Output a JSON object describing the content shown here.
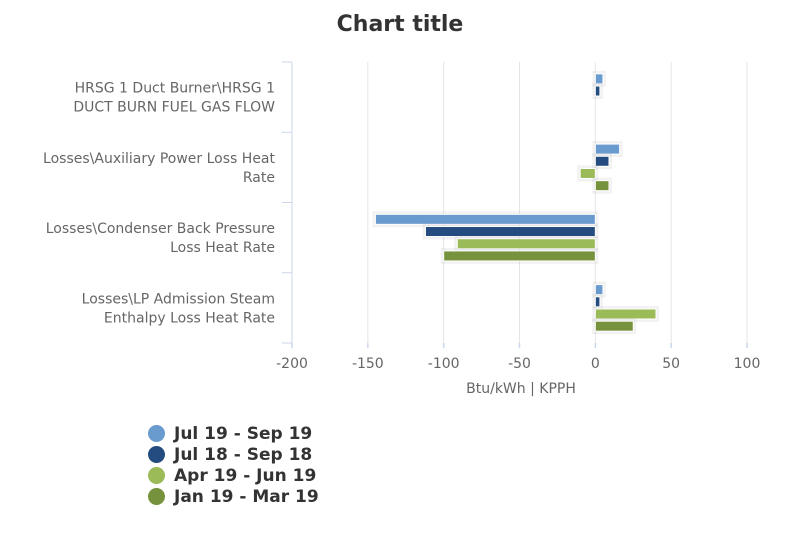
{
  "chart_data": {
    "type": "bar",
    "orientation": "horizontal",
    "title": "Chart title",
    "xlabel": "Btu/kWh | KPPH",
    "ylabel": "",
    "xlim": [
      -200,
      100
    ],
    "xticks": [
      -200,
      -150,
      -100,
      -50,
      0,
      50,
      100
    ],
    "grid": true,
    "legend_position": "bottom-left",
    "categories": [
      [
        "HRSG 1 Duct Burner\\HRSG 1",
        "DUCT BURN FUEL GAS FLOW"
      ],
      [
        "Losses\\Auxiliary Power Loss Heat",
        "Rate"
      ],
      [
        "Losses\\Condenser Back Pressure",
        "Loss Heat Rate"
      ],
      [
        "Losses\\LP Admission Steam",
        "Enthalpy Loss Heat Rate"
      ]
    ],
    "series": [
      {
        "name": "Jul 19 - Sep 19",
        "color": "#6a9bcf",
        "values": [
          5,
          16,
          -145,
          5
        ]
      },
      {
        "name": "Jul 18 - Sep 18",
        "color": "#244c80",
        "values": [
          3,
          9,
          -112,
          3
        ]
      },
      {
        "name": "Apr 19 - Jun 19",
        "color": "#9bbb59",
        "values": [
          null,
          -10,
          -91,
          40
        ]
      },
      {
        "name": "Jan 19 - Mar 19",
        "color": "#76923c",
        "values": [
          null,
          9,
          -100,
          25
        ]
      }
    ]
  }
}
